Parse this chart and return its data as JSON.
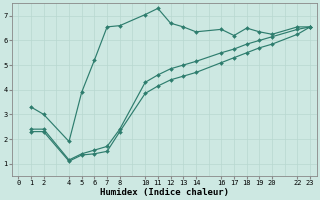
{
  "xlabel": "Humidex (Indice chaleur)",
  "bg_color": "#cde8e2",
  "line_color": "#2e7d6e",
  "grid_color": "#b8d8d0",
  "line1_x": [
    1,
    2,
    4,
    5,
    6,
    7,
    8,
    10,
    11,
    12,
    13,
    14,
    16,
    17,
    18,
    19,
    20,
    22,
    23
  ],
  "line1_y": [
    3.3,
    3.0,
    1.9,
    3.9,
    5.2,
    6.55,
    6.6,
    7.05,
    7.3,
    6.7,
    6.55,
    6.35,
    6.45,
    6.2,
    6.5,
    6.35,
    6.25,
    6.55,
    6.55
  ],
  "line2_x": [
    1,
    2,
    4,
    5,
    6,
    7,
    8,
    10,
    11,
    12,
    13,
    14,
    16,
    17,
    18,
    19,
    20,
    22,
    23
  ],
  "line2_y": [
    2.3,
    2.3,
    1.1,
    1.35,
    1.4,
    1.5,
    2.3,
    3.85,
    4.15,
    4.4,
    4.55,
    4.7,
    5.1,
    5.3,
    5.5,
    5.7,
    5.85,
    6.25,
    6.55
  ],
  "line3_x": [
    1,
    2,
    4,
    5,
    6,
    7,
    8,
    10,
    11,
    12,
    13,
    14,
    16,
    17,
    18,
    19,
    20,
    22,
    23
  ],
  "line3_y": [
    2.4,
    2.4,
    1.15,
    1.4,
    1.55,
    1.7,
    2.4,
    4.3,
    4.6,
    4.85,
    5.0,
    5.15,
    5.5,
    5.65,
    5.85,
    6.0,
    6.15,
    6.45,
    6.55
  ],
  "xlim": [
    -0.5,
    23.5
  ],
  "ylim": [
    0.5,
    7.5
  ],
  "xtick_positions": [
    0,
    1,
    2,
    4,
    5,
    6,
    7,
    8,
    10,
    11,
    12,
    13,
    14,
    16,
    17,
    18,
    19,
    20,
    22,
    23
  ],
  "xtick_labels": [
    "0",
    "1",
    "2",
    "4",
    "5",
    "6",
    "7",
    "8",
    "10",
    "11",
    "12",
    "13",
    "14",
    "16",
    "17",
    "18",
    "19",
    "20",
    "22",
    "23"
  ],
  "yticks": [
    1,
    2,
    3,
    4,
    5,
    6,
    7
  ],
  "axis_fontsize": 6.5,
  "tick_fontsize": 5.0,
  "linewidth": 0.85,
  "markersize": 2.0
}
